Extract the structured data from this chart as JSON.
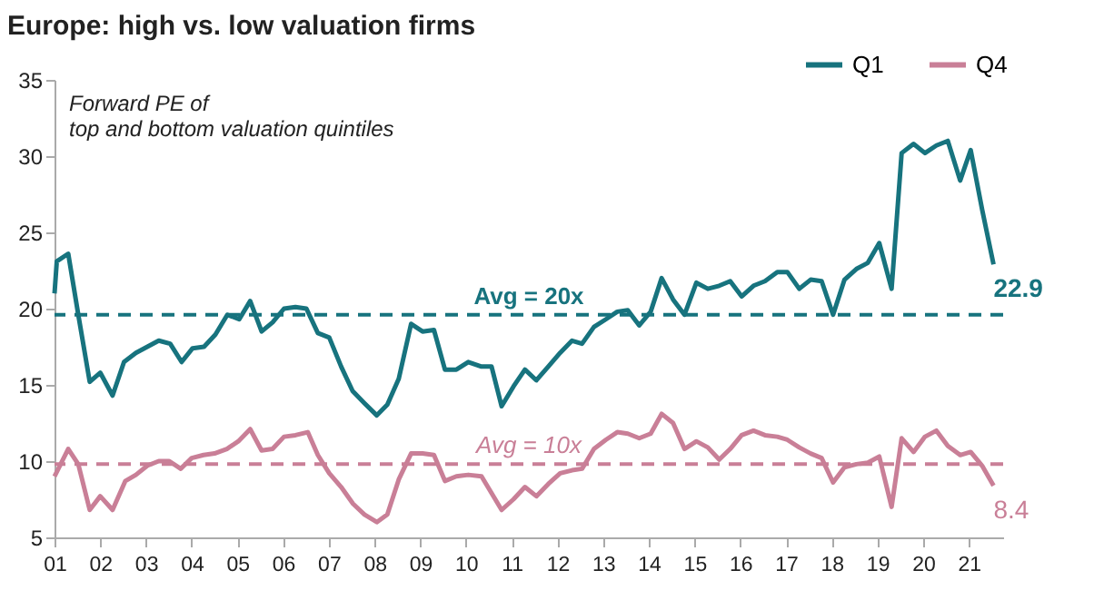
{
  "chart_data": {
    "type": "line",
    "title": "Europe: high vs. low valuation firms",
    "subtitle": "Forward PE of top and bottom valuation quintiles",
    "xlim": [
      2001,
      2021.75
    ],
    "ylim": [
      5,
      35
    ],
    "yticks": [
      5,
      10,
      15,
      20,
      25,
      30,
      35
    ],
    "xticks": [
      {
        "value": 2001,
        "label": "01"
      },
      {
        "value": 2002,
        "label": "02"
      },
      {
        "value": 2003,
        "label": "03"
      },
      {
        "value": 2004,
        "label": "04"
      },
      {
        "value": 2005,
        "label": "05"
      },
      {
        "value": 2006,
        "label": "06"
      },
      {
        "value": 2007,
        "label": "07"
      },
      {
        "value": 2008,
        "label": "08"
      },
      {
        "value": 2009,
        "label": "09"
      },
      {
        "value": 2010,
        "label": "10"
      },
      {
        "value": 2011,
        "label": "11"
      },
      {
        "value": 2012,
        "label": "12"
      },
      {
        "value": 2013,
        "label": "13"
      },
      {
        "value": 2014,
        "label": "14"
      },
      {
        "value": 2015,
        "label": "15"
      },
      {
        "value": 2016,
        "label": "16"
      },
      {
        "value": 2017,
        "label": "17"
      },
      {
        "value": 2018,
        "label": "18"
      },
      {
        "value": 2019,
        "label": "19"
      },
      {
        "value": 2020,
        "label": "20"
      },
      {
        "value": 2021,
        "label": "21"
      }
    ],
    "grid": false,
    "legend": "top right",
    "line_style": "solid",
    "marker": "none",
    "series": [
      {
        "name": "Q1",
        "color": "#17737e",
        "x": [
          2001,
          2001.05,
          2001.3,
          2001.52,
          2001.77,
          2002.0,
          2002.27,
          2002.52,
          2002.78,
          2003.03,
          2003.28,
          2003.53,
          2003.78,
          2004.02,
          2004.27,
          2004.52,
          2004.78,
          2005.04,
          2005.28,
          2005.53,
          2005.77,
          2006.02,
          2006.27,
          2006.51,
          2006.76,
          2007.01,
          2007.27,
          2007.52,
          2007.78,
          2008.05,
          2008.28,
          2008.53,
          2008.8,
          2009.05,
          2009.3,
          2009.54,
          2009.79,
          2010.05,
          2010.34,
          2010.56,
          2010.78,
          2011.04,
          2011.29,
          2011.54,
          2011.8,
          2012.06,
          2012.32,
          2012.54,
          2012.8,
          2013.06,
          2013.31,
          2013.54,
          2013.79,
          2014.04,
          2014.28,
          2014.53,
          2014.78,
          2015.04,
          2015.29,
          2015.54,
          2015.78,
          2016.03,
          2016.29,
          2016.54,
          2016.81,
          2017.03,
          2017.29,
          2017.54,
          2017.78,
          2018.03,
          2018.28,
          2018.54,
          2018.79,
          2019.04,
          2019.31,
          2019.53,
          2019.79,
          2020.04,
          2020.29,
          2020.54,
          2020.81,
          2021.04,
          2021.29,
          2021.54
        ],
        "values": [
          21,
          23.1,
          23.6,
          19.6,
          15.2,
          15.8,
          14.3,
          16.5,
          17.1,
          17.5,
          17.9,
          17.7,
          16.5,
          17.4,
          17.5,
          18.3,
          19.6,
          19.3,
          20.5,
          18.5,
          19.1,
          20,
          20.1,
          20,
          18.4,
          18.1,
          16.2,
          14.6,
          13.8,
          13,
          13.7,
          15.4,
          19,
          18.5,
          18.6,
          16,
          16,
          16.5,
          16.2,
          16.2,
          13.6,
          14.9,
          16,
          15.3,
          16.2,
          17.1,
          17.9,
          17.7,
          18.8,
          19.3,
          19.8,
          19.9,
          18.9,
          19.8,
          22,
          20.6,
          19.6,
          21.7,
          21.3,
          21.5,
          21.8,
          20.8,
          21.5,
          21.8,
          22.4,
          22.4,
          21.3,
          21.9,
          21.8,
          19.6,
          21.9,
          22.6,
          23,
          24.3,
          21.3,
          30.2,
          30.8,
          30.2,
          30.7,
          31,
          28.4,
          30.4,
          26.5,
          22.9
        ]
      },
      {
        "name": "Q4",
        "color": "#c97f97",
        "x": [
          2001,
          2001.3,
          2001.52,
          2001.77,
          2002.0,
          2002.27,
          2002.55,
          2002.78,
          2003.03,
          2003.28,
          2003.51,
          2003.76,
          2004.0,
          2004.26,
          2004.5,
          2004.77,
          2005.02,
          2005.28,
          2005.53,
          2005.77,
          2006.02,
          2006.27,
          2006.54,
          2006.76,
          2007.01,
          2007.27,
          2007.53,
          2007.78,
          2008.05,
          2008.28,
          2008.53,
          2008.8,
          2009.05,
          2009.3,
          2009.54,
          2009.79,
          2010.05,
          2010.34,
          2010.78,
          2011.04,
          2011.29,
          2011.54,
          2011.8,
          2012.06,
          2012.32,
          2012.54,
          2012.8,
          2013.06,
          2013.31,
          2013.54,
          2013.79,
          2014.04,
          2014.28,
          2014.53,
          2014.78,
          2015.04,
          2015.29,
          2015.54,
          2015.78,
          2016.03,
          2016.29,
          2016.54,
          2016.81,
          2017.03,
          2017.29,
          2017.54,
          2017.78,
          2018.03,
          2018.28,
          2018.54,
          2018.79,
          2019.04,
          2019.31,
          2019.53,
          2019.79,
          2020.04,
          2020.29,
          2020.54,
          2020.81,
          2021.04,
          2021.29,
          2021.54
        ],
        "values": [
          9.0,
          10.8,
          9.8,
          6.8,
          7.7,
          6.8,
          8.7,
          9.1,
          9.7,
          10,
          10,
          9.5,
          10.2,
          10.4,
          10.5,
          10.8,
          11.3,
          12.1,
          10.7,
          10.8,
          11.6,
          11.7,
          11.9,
          10.4,
          9.2,
          8.3,
          7.2,
          6.5,
          6.0,
          6.5,
          8.8,
          10.5,
          10.5,
          10.4,
          8.7,
          9.0,
          9.1,
          9.0,
          6.8,
          7.5,
          8.3,
          7.7,
          8.5,
          9.2,
          9.4,
          9.5,
          10.8,
          11.4,
          11.9,
          11.8,
          11.5,
          11.8,
          13.1,
          12.5,
          10.8,
          11.3,
          10.9,
          10.1,
          10.8,
          11.7,
          12,
          11.7,
          11.6,
          11.4,
          10.9,
          10.5,
          10.2,
          8.6,
          9.6,
          9.8,
          9.9,
          10.3,
          7.0,
          11.5,
          10.6,
          11.6,
          12.0,
          11,
          10.4,
          10.6,
          9.7,
          8.4
        ]
      }
    ],
    "ref_lines": [
      {
        "axis": "y",
        "value": 19.6,
        "label": "Avg = 20x",
        "color": "#17737e",
        "line_style": "dashed"
      },
      {
        "axis": "y",
        "value": 9.8,
        "label": "Avg = 10x",
        "color": "#c97f97",
        "line_style": "dashed"
      }
    ],
    "annotations": [
      {
        "text": "22.9",
        "x": 2021.54,
        "y": 22.9
      },
      {
        "text": "8.4",
        "x": 2021.54,
        "y": 8.4
      }
    ]
  }
}
